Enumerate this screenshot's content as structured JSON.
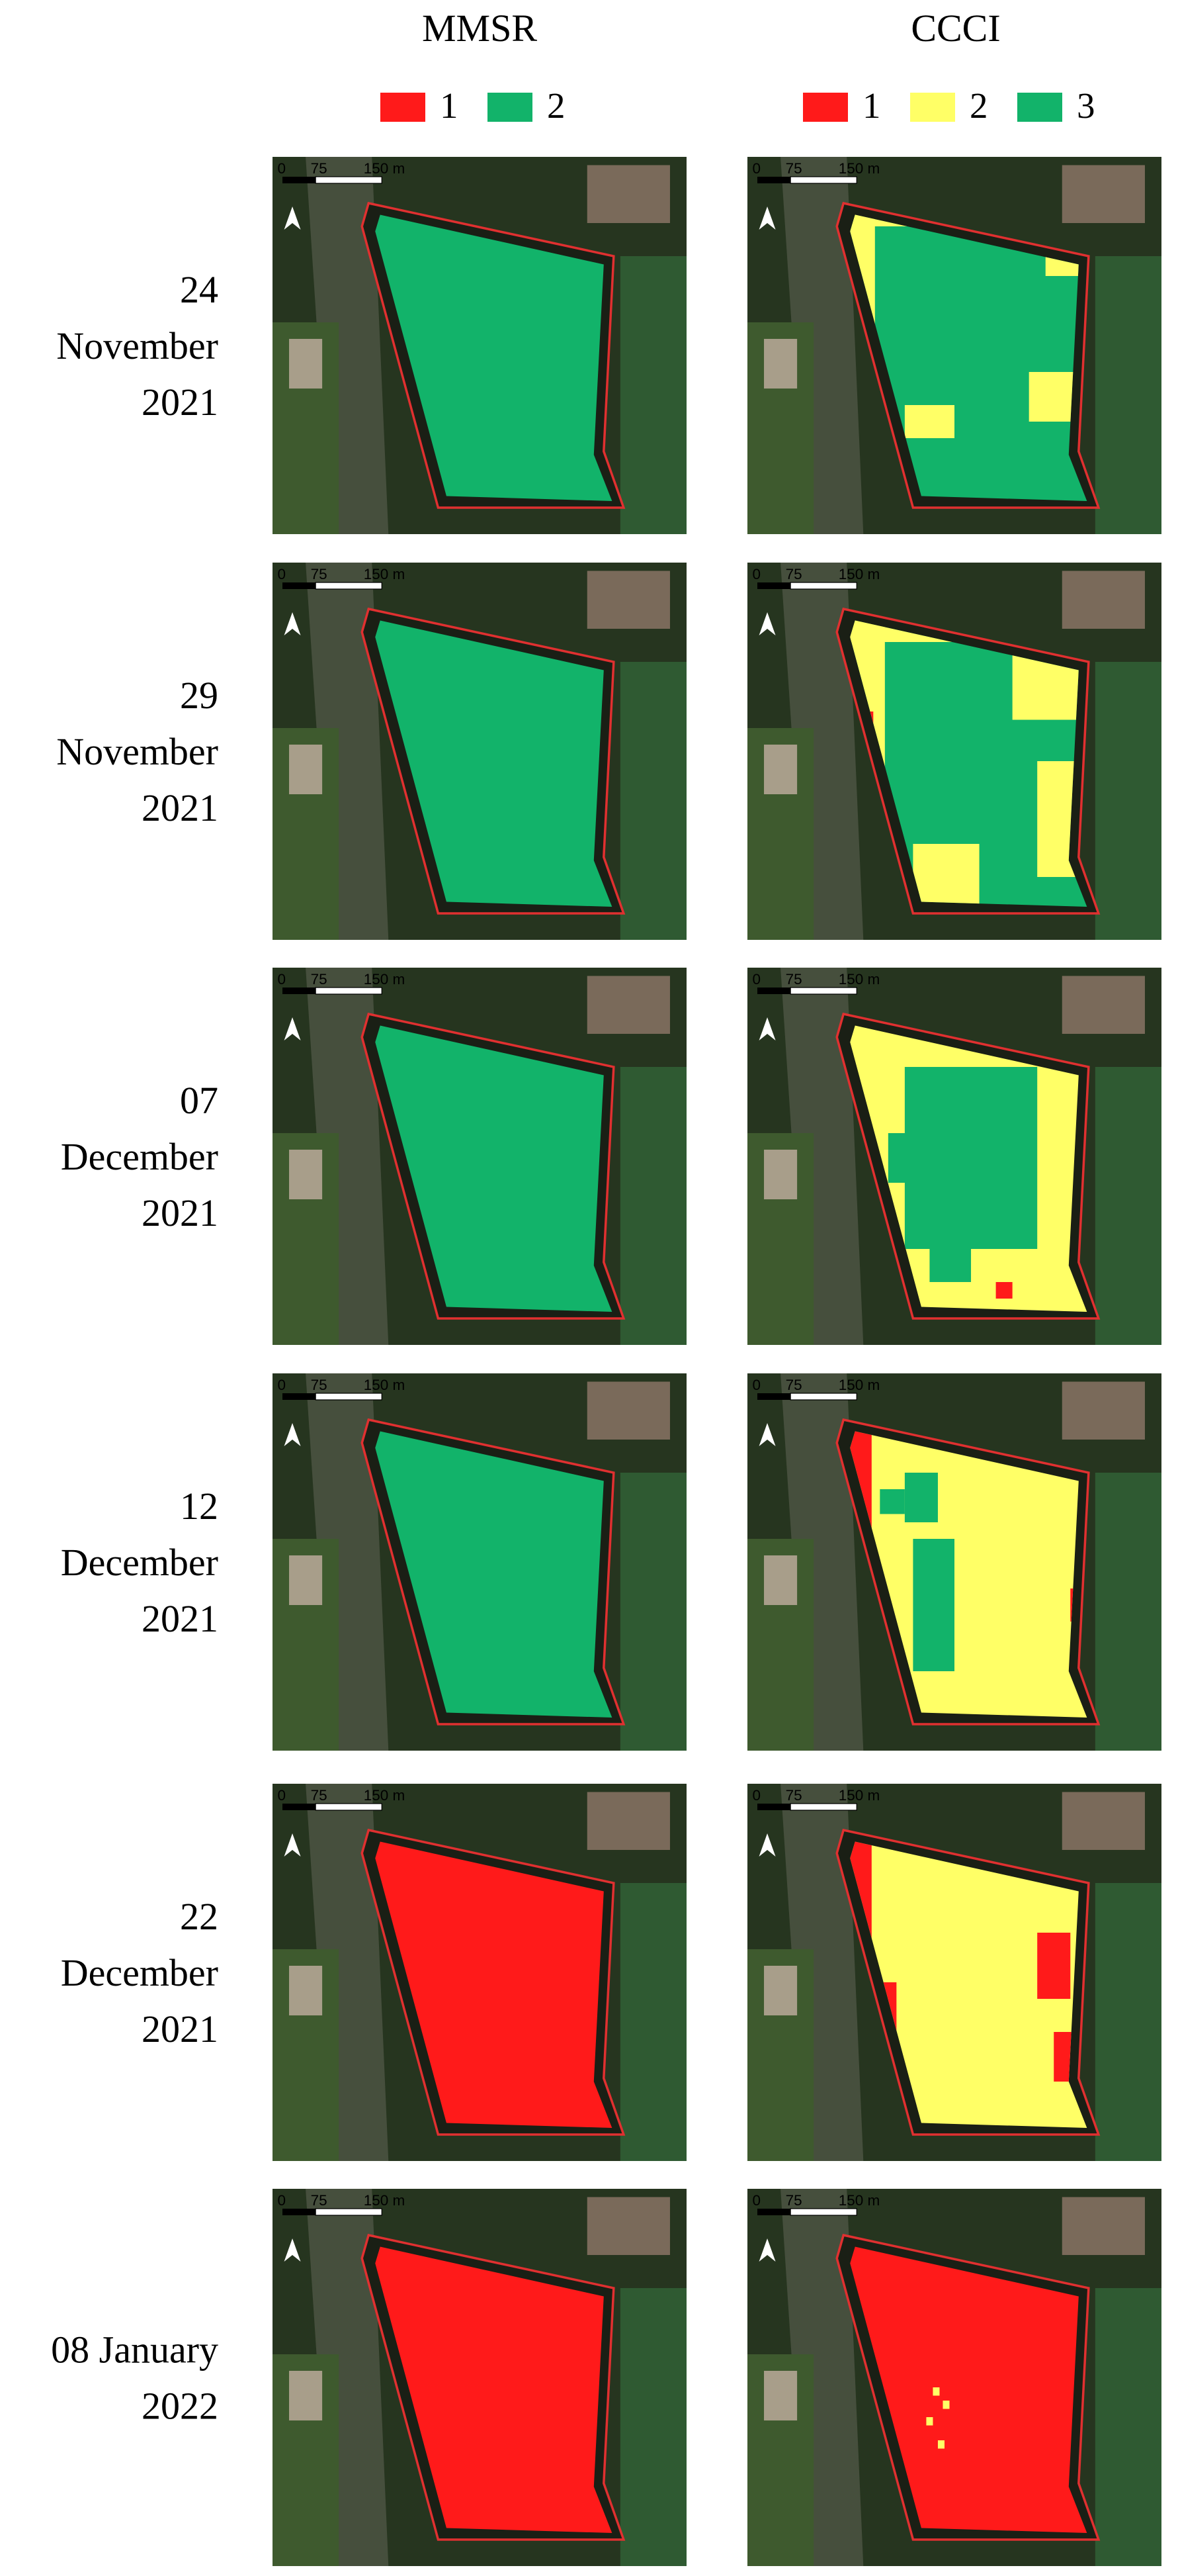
{
  "columns": [
    {
      "title": "MMSR",
      "legend": [
        {
          "label": "1",
          "color": "#ff1a1a"
        },
        {
          "label": "2",
          "color": "#12b36a"
        }
      ]
    },
    {
      "title": "CCCI",
      "legend": [
        {
          "label": "1",
          "color": "#ff1a1a"
        },
        {
          "label": "2",
          "color": "#ffff66"
        },
        {
          "label": "3",
          "color": "#12b36a"
        }
      ]
    }
  ],
  "scale_bar": [
    "0",
    "75",
    "150 m"
  ],
  "rows": [
    {
      "date": [
        "24",
        "November",
        "2021"
      ]
    },
    {
      "date": [
        "29",
        "November",
        "2021"
      ]
    },
    {
      "date": [
        "07",
        "December",
        "2021"
      ]
    },
    {
      "date": [
        "12",
        "December",
        "2021"
      ]
    },
    {
      "date": [
        "22",
        "December",
        "2021"
      ]
    },
    {
      "date": [
        "08 January",
        "2022"
      ]
    }
  ]
}
